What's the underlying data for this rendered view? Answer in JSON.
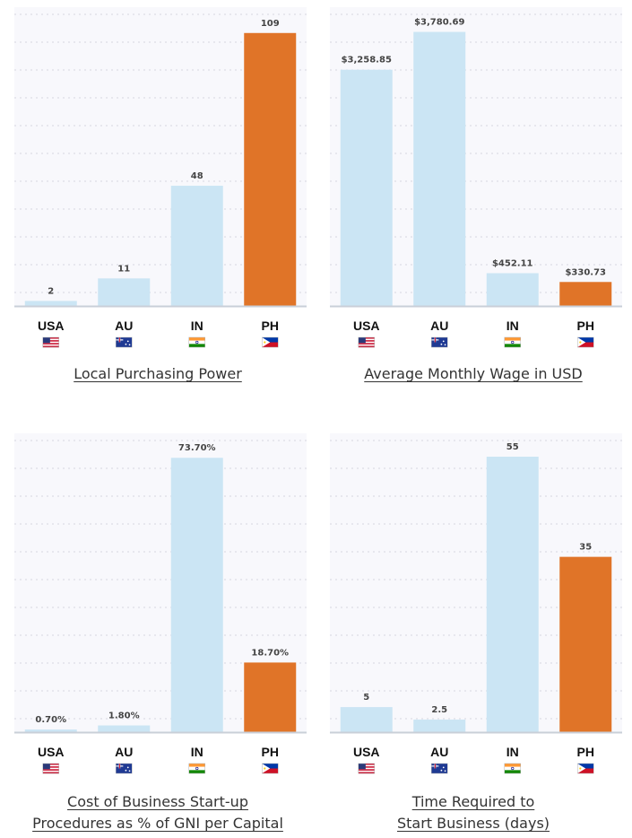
{
  "colors": {
    "bar": "#cbe5f4",
    "highlight": "#e07428",
    "plot_bg": "#f8f8fc",
    "grid": "#d6d6e0",
    "axis": "#c9cfd8"
  },
  "chart_data": [
    {
      "type": "bar",
      "title": "Local Purchasing Power",
      "categories": [
        "USA",
        "AU",
        "IN",
        "PH"
      ],
      "category_icons": [
        "us-flag-icon",
        "au-flag-icon",
        "in-flag-icon",
        "ph-flag-icon"
      ],
      "values": [
        2,
        11,
        48,
        109
      ],
      "value_labels": [
        "2",
        "11",
        "48",
        "109"
      ],
      "highlight": "PH",
      "ylim": [
        0,
        110
      ],
      "grid": true
    },
    {
      "type": "bar",
      "title": "Average Monthly Wage in USD",
      "categories": [
        "USA",
        "AU",
        "IN",
        "PH"
      ],
      "category_icons": [
        "us-flag-icon",
        "au-flag-icon",
        "in-flag-icon",
        "ph-flag-icon"
      ],
      "values": [
        3258.85,
        3780.69,
        452.11,
        330.73
      ],
      "value_labels": [
        "$3,258.85",
        "$3,780.69",
        "$452.11",
        "$330.73"
      ],
      "highlight": "PH",
      "ylim": [
        0,
        3800
      ],
      "grid": true
    },
    {
      "type": "bar",
      "title_lines": [
        "Cost of Business Start-up",
        "Procedures as % of GNI per Capital"
      ],
      "categories": [
        "USA",
        "AU",
        "IN",
        "PH"
      ],
      "category_icons": [
        "us-flag-icon",
        "au-flag-icon",
        "in-flag-icon",
        "ph-flag-icon"
      ],
      "values": [
        0.7,
        1.8,
        73.7,
        18.7
      ],
      "value_labels": [
        "0.70%",
        "1.80%",
        "73.70%",
        "18.70%"
      ],
      "highlight": "PH",
      "ylim": [
        0,
        74
      ],
      "grid": true
    },
    {
      "type": "bar",
      "title_lines": [
        "Time Required to",
        "Start Business (days)"
      ],
      "categories": [
        "USA",
        "AU",
        "IN",
        "PH"
      ],
      "category_icons": [
        "us-flag-icon",
        "au-flag-icon",
        "in-flag-icon",
        "ph-flag-icon"
      ],
      "values": [
        5,
        2.5,
        55,
        35
      ],
      "value_labels": [
        "5",
        "2.5",
        "55",
        "35"
      ],
      "highlight": "PH",
      "ylim": [
        0,
        55
      ],
      "grid": true
    }
  ]
}
